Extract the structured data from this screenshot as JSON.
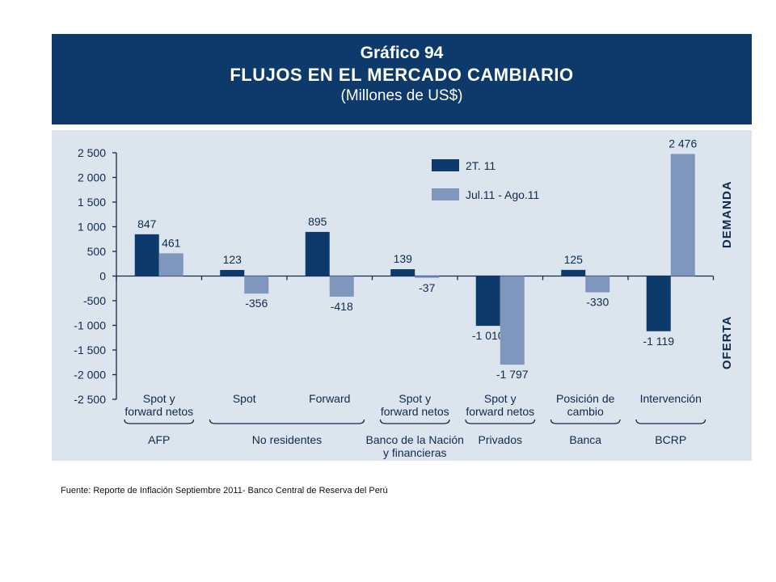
{
  "header": {
    "chart_number": "Gráfico 94",
    "title": "FLUJOS EN EL MERCADO CAMBIARIO",
    "subtitle": "(Millones de US$)"
  },
  "chart_data": {
    "type": "bar",
    "ylim": [
      -2500,
      2500
    ],
    "yticks": [
      2500,
      2000,
      1500,
      1000,
      500,
      0,
      -500,
      -1000,
      -1500,
      -2000,
      -2500
    ],
    "ytick_labels": [
      "2 500",
      "2 000",
      "1 500",
      "1 000",
      "500",
      "0",
      "-500",
      "-1 000",
      "-1 500",
      "-2 000",
      "-2 500"
    ],
    "categories": [
      [
        "Spot y",
        "forward netos"
      ],
      [
        "Spot"
      ],
      [
        "Forward"
      ],
      [
        "Spot y",
        "forward netos"
      ],
      [
        "Spot y",
        "forward netos"
      ],
      [
        "Posición de",
        "cambio"
      ],
      [
        "Intervención"
      ]
    ],
    "series": [
      {
        "name": "2T. 11",
        "color": "#0e3a6b",
        "values": [
          847,
          123,
          895,
          139,
          -1010,
          125,
          -1119
        ],
        "labels": [
          "847",
          "123",
          "895",
          "139",
          "-1 010",
          "125",
          "-1 119"
        ]
      },
      {
        "name": "Jul.11 - Ago.11",
        "color": "#8097bd",
        "values": [
          461,
          -356,
          -418,
          -37,
          -1797,
          -330,
          2476
        ],
        "labels": [
          "461",
          "-356",
          "-418",
          "-37",
          "-1 797",
          "-330",
          "2 476"
        ]
      }
    ],
    "groups": [
      {
        "label": [
          "AFP"
        ],
        "from": 0,
        "to": 0
      },
      {
        "label": [
          "No residentes"
        ],
        "from": 1,
        "to": 2
      },
      {
        "label": [
          "Banco de la Nación",
          "y financieras"
        ],
        "from": 3,
        "to": 3
      },
      {
        "label": [
          "Privados"
        ],
        "from": 4,
        "to": 4
      },
      {
        "label": [
          "Banca"
        ],
        "from": 5,
        "to": 5
      },
      {
        "label": [
          "BCRP"
        ],
        "from": 6,
        "to": 6
      }
    ],
    "side_labels": {
      "top": "DEMANDA",
      "bottom": "OFERTA"
    },
    "legend_position": "top-right",
    "grid": false
  },
  "source": "Fuente: Reporte de Inflación Septiembre 2011- Banco Central de Reserva del Perú"
}
